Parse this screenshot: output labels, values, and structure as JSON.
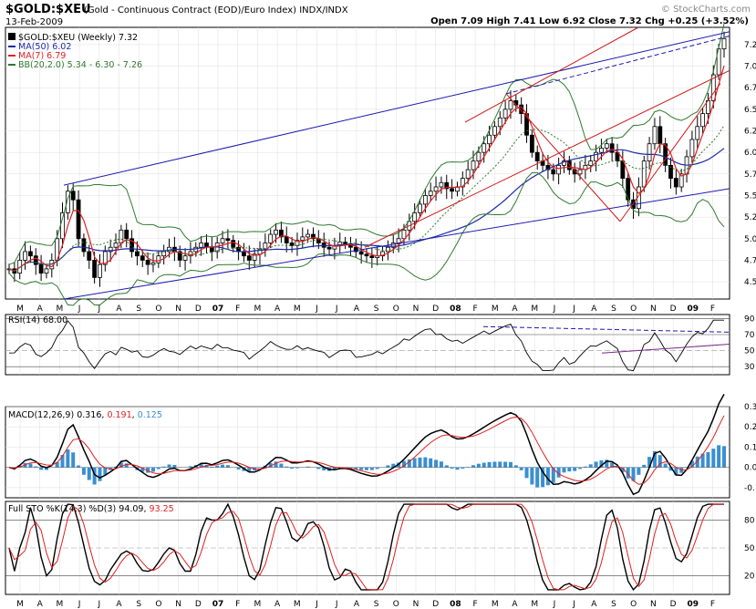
{
  "header": {
    "ticker": "$GOLD:$XEU",
    "description": "(Gold - Continuous Contract (EOD)/Euro Index) INDX/INDX",
    "date": "13-Feb-2009",
    "watermark": "© StockCharts.com",
    "ohlc": "Open 7.09 High 7.41 Low 6.92 Close 7.32 Chg +0.25 (+3.52%)"
  },
  "legend": {
    "price": "$GOLD:$XEU (Weekly) 7.32",
    "ma50": "MA(50) 6.02",
    "ma7": "MA(7) 6.79",
    "bb": "BB(20,2.0) 5.34 - 6.30 - 7.26",
    "rsi": "RSI(14) 68.00",
    "macd_label": "MACD(12,26,9)",
    "macd_v1": "0.316",
    "macd_v2": "0.191",
    "macd_v3": "0.125",
    "sto_label": "Full STO %K(14,3) %D(3)",
    "sto_v1": "94.09",
    "sto_v2": "93.25"
  },
  "colors": {
    "candle": "#000000",
    "ma50": "#1b2aa8",
    "ma7": "#e02020",
    "bb": "#2f7a2f",
    "trend_blue": "#1a1ab0",
    "trend_red": "#d01818",
    "macd_hist": "#3a8fd0",
    "rsi_fill": "#3a7a3a",
    "rsi_trend": "#7a2a8a"
  },
  "chart_data": {
    "type": "line",
    "x_months": [
      "M",
      "A",
      "M",
      "J",
      "J",
      "A",
      "S",
      "O",
      "N",
      "D",
      "07",
      "F",
      "M",
      "A",
      "M",
      "J",
      "J",
      "A",
      "S",
      "O",
      "N",
      "D",
      "08",
      "F",
      "M",
      "A",
      "M",
      "J",
      "J",
      "A",
      "S",
      "O",
      "N",
      "D",
      "09",
      "F"
    ],
    "price": {
      "y_ticks": [
        "7.25",
        "7.00",
        "6.75",
        "6.50",
        "6.25",
        "6.00",
        "5.75",
        "5.50",
        "5.25",
        "5.00",
        "4.75",
        "4.50"
      ],
      "ylim": [
        4.3,
        7.45
      ],
      "close": [
        4.65,
        4.6,
        4.75,
        4.85,
        4.8,
        4.7,
        4.6,
        4.65,
        4.75,
        5.0,
        5.3,
        5.55,
        5.45,
        5.0,
        4.85,
        4.75,
        4.55,
        4.7,
        4.85,
        4.9,
        4.95,
        5.1,
        5.0,
        4.85,
        4.8,
        4.75,
        4.7,
        4.72,
        4.8,
        4.85,
        4.9,
        4.85,
        4.75,
        4.8,
        4.85,
        4.9,
        4.95,
        4.9,
        4.85,
        4.95,
        5.0,
        4.98,
        4.9,
        4.85,
        4.8,
        4.75,
        4.82,
        4.88,
        4.95,
        5.05,
        5.1,
        5.02,
        4.95,
        4.92,
        4.98,
        5.02,
        5.05,
        5.0,
        4.95,
        4.9,
        4.88,
        4.92,
        4.96,
        4.94,
        4.9,
        4.85,
        4.82,
        4.8,
        4.78,
        4.8,
        4.85,
        4.9,
        4.95,
        5.0,
        5.1,
        5.2,
        5.3,
        5.4,
        5.5,
        5.55,
        5.6,
        5.65,
        5.58,
        5.55,
        5.6,
        5.7,
        5.8,
        5.9,
        6.0,
        6.1,
        6.2,
        6.3,
        6.4,
        6.5,
        6.6,
        6.55,
        6.45,
        6.2,
        6.0,
        5.9,
        5.85,
        5.8,
        5.75,
        5.85,
        5.9,
        5.8,
        5.75,
        5.8,
        5.85,
        5.9,
        6.0,
        6.05,
        6.1,
        6.0,
        5.9,
        5.7,
        5.45,
        5.35,
        5.6,
        5.9,
        6.1,
        6.3,
        6.1,
        5.85,
        5.7,
        5.6,
        5.75,
        5.95,
        6.15,
        6.3,
        6.45,
        6.6,
        6.9,
        7.2,
        7.32
      ]
    },
    "rsi": {
      "value": 68.0,
      "levels": [
        30,
        50,
        70,
        90
      ]
    },
    "macd": {
      "macd": 0.316,
      "signal": 0.191,
      "histogram": 0.125,
      "y_ticks": [
        "0.3",
        "0.2",
        "0.1",
        "0.0",
        "-0.1"
      ]
    },
    "stochastic": {
      "k": 94.09,
      "d": 93.25,
      "y_ticks": [
        "80",
        "50",
        "20"
      ]
    }
  }
}
